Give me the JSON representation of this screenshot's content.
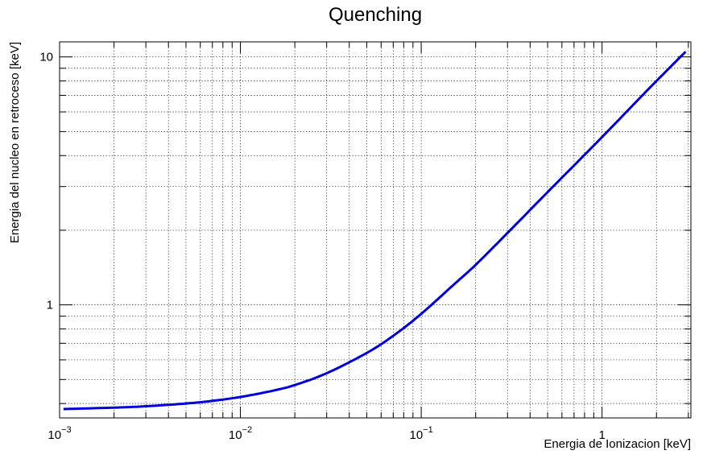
{
  "chart_data": {
    "type": "line",
    "title": "Quenching",
    "xlabel": "Energia de Ionizacion [keV]",
    "ylabel": "Energia del nucleo en retroceso [keV]",
    "xscale": "log",
    "yscale": "log",
    "xlim": [
      0.001,
      3.1
    ],
    "ylim": [
      0.35,
      11.5
    ],
    "grid": true,
    "x_ticks": [
      {
        "value": 0.001,
        "base": "10",
        "exp": "−3"
      },
      {
        "value": 0.01,
        "base": "10",
        "exp": "−2"
      },
      {
        "value": 0.1,
        "base": "10",
        "exp": "−1"
      },
      {
        "value": 1,
        "base": "1",
        "exp": ""
      }
    ],
    "y_ticks": [
      {
        "value": 1,
        "label": "1"
      },
      {
        "value": 10,
        "label": "10"
      }
    ],
    "series": [
      {
        "color": "#0000dd",
        "x": [
          0.00105,
          0.002,
          0.003,
          0.005,
          0.007,
          0.01,
          0.015,
          0.02,
          0.03,
          0.05,
          0.07,
          0.1,
          0.15,
          0.2,
          0.3,
          0.5,
          0.7,
          1.0,
          1.5,
          2.0,
          2.9
        ],
        "y": [
          0.38,
          0.385,
          0.39,
          0.4,
          0.41,
          0.425,
          0.45,
          0.475,
          0.53,
          0.64,
          0.75,
          0.92,
          1.2,
          1.45,
          1.95,
          2.85,
          3.65,
          4.75,
          6.45,
          8.0,
          10.5
        ]
      }
    ]
  }
}
